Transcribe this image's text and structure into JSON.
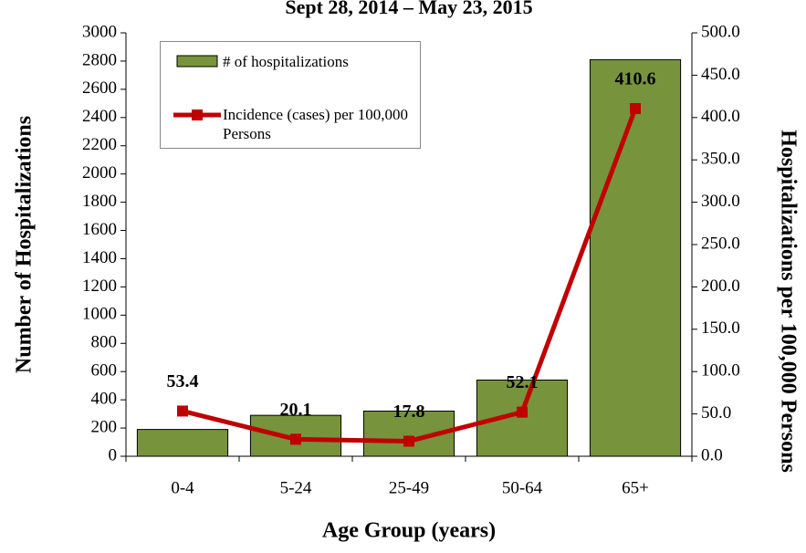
{
  "chart_data": {
    "type": "bar-line",
    "title": "Sept 28, 2014 – May 23, 2015",
    "x_label": "Age Group (years)",
    "y_label": "Number of Hospitalizations",
    "y2_label": "Hospitalizations per 100,000 Persons",
    "categories": [
      "0-4",
      "5-24",
      "25-49",
      "50-64",
      "65+"
    ],
    "series": [
      {
        "name": "# of hospitalizations",
        "type": "bar",
        "color": "#77933c",
        "values": [
          190,
          290,
          320,
          540,
          2810
        ]
      },
      {
        "name": "Incidence (cases) per 100,000 Persons",
        "type": "line",
        "axis": "y2",
        "color": "#c00000",
        "values": [
          53.4,
          20.1,
          17.8,
          52.1,
          410.6
        ]
      }
    ],
    "ylim": [
      0,
      3000
    ],
    "yticks": [
      0,
      200,
      400,
      600,
      800,
      1000,
      1200,
      1400,
      1600,
      1800,
      2000,
      2200,
      2400,
      2600,
      2800,
      3000
    ],
    "y2lim": [
      0,
      500
    ],
    "y2ticks": [
      {
        "value": 0,
        "label": "0.0"
      },
      {
        "value": 50,
        "label": "50.0"
      },
      {
        "value": 100,
        "label": "100.0"
      },
      {
        "value": 150,
        "label": "150.0"
      },
      {
        "value": 200,
        "label": "200.0"
      },
      {
        "value": 250,
        "label": "250.0"
      },
      {
        "value": 300,
        "label": "300.0"
      },
      {
        "value": 350,
        "label": "350.0"
      },
      {
        "value": 400,
        "label": "400.0"
      },
      {
        "value": 450,
        "label": "450.0"
      },
      {
        "value": 500,
        "label": "500.0"
      }
    ],
    "legend": "upper left",
    "grid": false
  }
}
